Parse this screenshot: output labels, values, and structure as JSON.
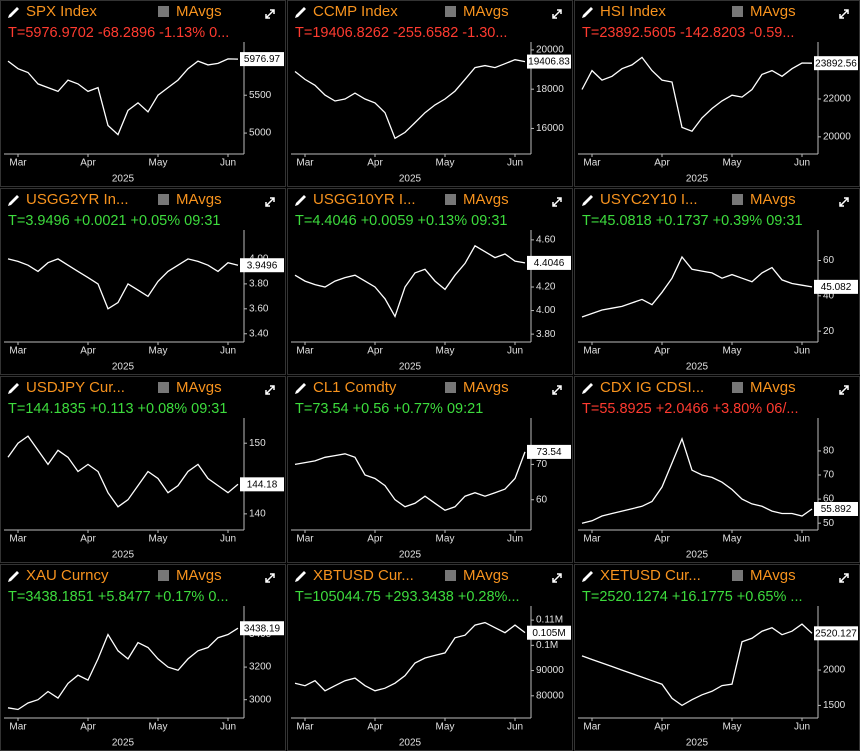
{
  "chart_data": [
    {
      "type": "line",
      "title": "SPX Index",
      "button": "MAvgs",
      "quote": "T=5976.9702 -68.2896 -1.13% 0...",
      "quote_color": "#ff3b30",
      "color": "#ffffff",
      "categories": [
        null,
        "Mar",
        null,
        null,
        null,
        null,
        null,
        null,
        "Apr",
        null,
        null,
        null,
        null,
        null,
        null,
        "May",
        null,
        null,
        null,
        null,
        null,
        null,
        "Jun",
        null
      ],
      "xlabel": "2025",
      "values": [
        5950,
        5850,
        5800,
        5650,
        5600,
        5550,
        5700,
        5650,
        5550,
        5600,
        5100,
        4980,
        5300,
        5400,
        5280,
        5500,
        5600,
        5700,
        5850,
        5950,
        5900,
        5920,
        5980,
        5977
      ],
      "last": 5976.97,
      "ylim": [
        4750,
        6150
      ],
      "yticks": [
        5000,
        5500
      ]
    },
    {
      "type": "line",
      "title": "CCMP Index",
      "button": "MAvgs",
      "quote": "T=19406.8262 -255.6582 -1.30...",
      "quote_color": "#ff3b30",
      "color": "#ffffff",
      "categories": [
        null,
        "Mar",
        null,
        null,
        null,
        null,
        null,
        null,
        "Apr",
        null,
        null,
        null,
        null,
        null,
        null,
        "May",
        null,
        null,
        null,
        null,
        null,
        null,
        "Jun",
        null
      ],
      "xlabel": "2025",
      "values": [
        18900,
        18500,
        18200,
        17700,
        17400,
        17500,
        17800,
        17500,
        17300,
        16800,
        15500,
        15800,
        16300,
        16800,
        17200,
        17500,
        17900,
        18500,
        19100,
        19200,
        19100,
        19300,
        19500,
        19407
      ],
      "last": 19406.83,
      "ylim": [
        14800,
        20200
      ],
      "yticks": [
        16000,
        18000,
        20000
      ]
    },
    {
      "type": "line",
      "title": "HSI Index",
      "button": "MAvgs",
      "quote": "T=23892.5605 -142.8203 -0.59...",
      "quote_color": "#ff3b30",
      "color": "#ffffff",
      "categories": [
        null,
        "Mar",
        null,
        null,
        null,
        null,
        null,
        null,
        "Apr",
        null,
        null,
        null,
        null,
        null,
        null,
        "May",
        null,
        null,
        null,
        null,
        null,
        null,
        "Jun",
        null
      ],
      "xlabel": "2025",
      "values": [
        22500,
        23500,
        23000,
        23200,
        23600,
        23800,
        24200,
        23500,
        23000,
        22900,
        20500,
        20300,
        21000,
        21500,
        21900,
        22200,
        22100,
        22500,
        23300,
        23500,
        23200,
        23600,
        23900,
        23893
      ],
      "last": 23892.56,
      "ylim": [
        19200,
        24800
      ],
      "yticks": [
        20000,
        22000
      ]
    },
    {
      "type": "line",
      "title": "USGG2YR In...",
      "button": "MAvgs",
      "quote": "T=3.9496 +0.0021 +0.05% 09:31",
      "quote_color": "#3ddc3d",
      "color": "#ffffff",
      "categories": [
        null,
        "Mar",
        null,
        null,
        null,
        null,
        null,
        null,
        "Apr",
        null,
        null,
        null,
        null,
        null,
        null,
        "May",
        null,
        null,
        null,
        null,
        null,
        null,
        "Jun",
        null
      ],
      "xlabel": "2025",
      "values": [
        4.0,
        3.98,
        3.95,
        3.9,
        3.97,
        4.0,
        3.95,
        3.9,
        3.85,
        3.8,
        3.6,
        3.65,
        3.8,
        3.75,
        3.7,
        3.82,
        3.9,
        3.95,
        4.0,
        3.98,
        3.95,
        3.9,
        3.97,
        3.9496
      ],
      "last": 3.9496,
      "ylim": [
        3.35,
        4.2
      ],
      "yticks": [
        {
          "value": 3.4,
          "label": "3.40"
        },
        {
          "value": 3.6,
          "label": "3.60"
        },
        {
          "value": 3.8,
          "label": "3.80"
        },
        {
          "value": 4.0,
          "label": "4.00"
        }
      ]
    },
    {
      "type": "line",
      "title": "USGG10YR I...",
      "button": "MAvgs",
      "quote": "T=4.4046 +0.0059 +0.13% 09:31",
      "quote_color": "#3ddc3d",
      "color": "#ffffff",
      "categories": [
        null,
        "Mar",
        null,
        null,
        null,
        null,
        null,
        null,
        "Apr",
        null,
        null,
        null,
        null,
        null,
        null,
        "May",
        null,
        null,
        null,
        null,
        null,
        null,
        "Jun",
        null
      ],
      "xlabel": "2025",
      "values": [
        4.3,
        4.25,
        4.22,
        4.2,
        4.25,
        4.28,
        4.3,
        4.25,
        4.2,
        4.1,
        3.95,
        4.2,
        4.32,
        4.35,
        4.25,
        4.18,
        4.3,
        4.4,
        4.55,
        4.5,
        4.45,
        4.48,
        4.42,
        4.4046
      ],
      "last": 4.4046,
      "ylim": [
        3.75,
        4.65
      ],
      "yticks": [
        {
          "value": 3.8,
          "label": "3.80"
        },
        {
          "value": 4.0,
          "label": "4.00"
        },
        {
          "value": 4.2,
          "label": "4.20"
        },
        {
          "value": 4.4,
          "label": "4.40"
        },
        {
          "value": 4.6,
          "label": "4.60"
        }
      ]
    },
    {
      "type": "line",
      "title": "USYC2Y10 I...",
      "button": "MAvgs",
      "quote": "T=45.0818 +0.1737 +0.39% 09:31",
      "quote_color": "#3ddc3d",
      "color": "#ffffff",
      "categories": [
        null,
        "Mar",
        null,
        null,
        null,
        null,
        null,
        null,
        "Apr",
        null,
        null,
        null,
        null,
        null,
        null,
        "May",
        null,
        null,
        null,
        null,
        null,
        null,
        "Jun",
        null
      ],
      "xlabel": "2025",
      "values": [
        28,
        30,
        32,
        33,
        34,
        36,
        38,
        35,
        42,
        50,
        62,
        55,
        54,
        53,
        50,
        52,
        50,
        48,
        53,
        56,
        49,
        47,
        46,
        45.0818
      ],
      "last": 45.082,
      "ylim": [
        15,
        75
      ],
      "yticks": [
        20,
        40,
        60
      ]
    },
    {
      "type": "line",
      "title": "USDJPY Cur...",
      "button": "MAvgs",
      "quote": "T=144.1835 +0.113 +0.08% 09:31",
      "quote_color": "#3ddc3d",
      "color": "#ffffff",
      "categories": [
        null,
        "Mar",
        null,
        null,
        null,
        null,
        null,
        null,
        "Apr",
        null,
        null,
        null,
        null,
        null,
        null,
        "May",
        null,
        null,
        null,
        null,
        null,
        null,
        "Jun",
        null
      ],
      "xlabel": "2025",
      "values": [
        148,
        150,
        151,
        149,
        147,
        149,
        148,
        146,
        147,
        146,
        143,
        141,
        142,
        144,
        146,
        145,
        143,
        144,
        146,
        147,
        145,
        144,
        143,
        144.1835
      ],
      "last": 144.18,
      "ylim": [
        138,
        153
      ],
      "yticks": [
        140,
        150
      ]
    },
    {
      "type": "line",
      "title": "CL1 Comdty",
      "button": "MAvgs",
      "quote": "T=73.54 +0.56 +0.77% 09:21",
      "quote_color": "#3ddc3d",
      "color": "#ffffff",
      "categories": [
        null,
        "Mar",
        null,
        null,
        null,
        null,
        null,
        null,
        "Apr",
        null,
        null,
        null,
        null,
        null,
        null,
        "May",
        null,
        null,
        null,
        null,
        null,
        null,
        "Jun",
        null
      ],
      "xlabel": "2025",
      "values": [
        70,
        70.5,
        71,
        72,
        72.5,
        73,
        72,
        67,
        66,
        64,
        60,
        58,
        59,
        61,
        59,
        57,
        58,
        61,
        62,
        61,
        62,
        63,
        66,
        73.54
      ],
      "last": 73.54,
      "ylim": [
        52,
        82
      ],
      "yticks": [
        60,
        70
      ]
    },
    {
      "type": "line",
      "title": "CDX IG CDSI...",
      "button": "MAvgs",
      "quote": "T=55.8925 +2.0466 +3.80% 06/...",
      "quote_color": "#ff3b30",
      "color": "#ffffff",
      "categories": [
        null,
        "Mar",
        null,
        null,
        null,
        null,
        null,
        null,
        "Apr",
        null,
        null,
        null,
        null,
        null,
        null,
        "May",
        null,
        null,
        null,
        null,
        null,
        null,
        "Jun",
        null
      ],
      "xlabel": "2025",
      "values": [
        50,
        51,
        53,
        54,
        55,
        56,
        57,
        59,
        65,
        75,
        85,
        72,
        70,
        69,
        67,
        64,
        60,
        58,
        57,
        55,
        54,
        54,
        53,
        55.8925
      ],
      "last": 55.892,
      "ylim": [
        48,
        92
      ],
      "yticks": [
        50,
        60,
        70,
        80
      ]
    },
    {
      "type": "line",
      "title": "XAU Curncy",
      "button": "MAvgs",
      "quote": "T=3438.1851 +5.8477 +0.17% 0...",
      "quote_color": "#3ddc3d",
      "color": "#ffffff",
      "categories": [
        null,
        "Mar",
        null,
        null,
        null,
        null,
        null,
        null,
        "Apr",
        null,
        null,
        null,
        null,
        null,
        null,
        "May",
        null,
        null,
        null,
        null,
        null,
        null,
        "Jun",
        null
      ],
      "xlabel": "2025",
      "values": [
        2950,
        2940,
        2980,
        3000,
        3050,
        3010,
        3100,
        3150,
        3120,
        3250,
        3400,
        3300,
        3250,
        3350,
        3320,
        3250,
        3200,
        3180,
        3250,
        3300,
        3320,
        3380,
        3400,
        3438.19
      ],
      "last": 3438.19,
      "ylim": [
        2900,
        3550
      ],
      "yticks": [
        3000,
        3200,
        3400
      ]
    },
    {
      "type": "line",
      "title": "XBTUSD Cur...",
      "button": "MAvgs",
      "quote": "T=105044.75 +293.3438 +0.28%...",
      "quote_color": "#3ddc3d",
      "color": "#ffffff",
      "categories": [
        null,
        "Mar",
        null,
        null,
        null,
        null,
        null,
        null,
        "Apr",
        null,
        null,
        null,
        null,
        null,
        null,
        "May",
        null,
        null,
        null,
        null,
        null,
        null,
        "Jun",
        null
      ],
      "xlabel": "2025",
      "values": [
        85000,
        84000,
        86000,
        82000,
        84000,
        86000,
        87000,
        84000,
        82000,
        83000,
        85000,
        88000,
        93000,
        95000,
        96000,
        97000,
        103000,
        104000,
        108000,
        109000,
        107000,
        105000,
        108000,
        105044.75
      ],
      "last": {
        "value": 105000,
        "label": "0.105M"
      },
      "ylim": [
        72000,
        114000
      ],
      "yticks": [
        80000,
        90000,
        {
          "value": 100000,
          "label": "0.1M"
        },
        {
          "value": 110000,
          "label": "0.11M"
        }
      ]
    },
    {
      "type": "line",
      "title": "XETUSD Cur...",
      "button": "MAvgs",
      "quote": "T=2520.1274 +16.1775 +0.65% ...",
      "quote_color": "#3ddc3d",
      "color": "#ffffff",
      "categories": [
        null,
        "Mar",
        null,
        null,
        null,
        null,
        null,
        null,
        "Apr",
        null,
        null,
        null,
        null,
        null,
        null,
        "May",
        null,
        null,
        null,
        null,
        null,
        null,
        "Jun",
        null
      ],
      "xlabel": "2025",
      "values": [
        2200,
        2150,
        2100,
        2050,
        2000,
        1950,
        1900,
        1850,
        1800,
        1600,
        1500,
        1580,
        1650,
        1700,
        1780,
        1800,
        2400,
        2450,
        2550,
        2600,
        2500,
        2550,
        2650,
        2520.1274
      ],
      "last": 2520.127,
      "ylim": [
        1350,
        2850
      ],
      "yticks": [
        1500,
        2000
      ]
    }
  ]
}
